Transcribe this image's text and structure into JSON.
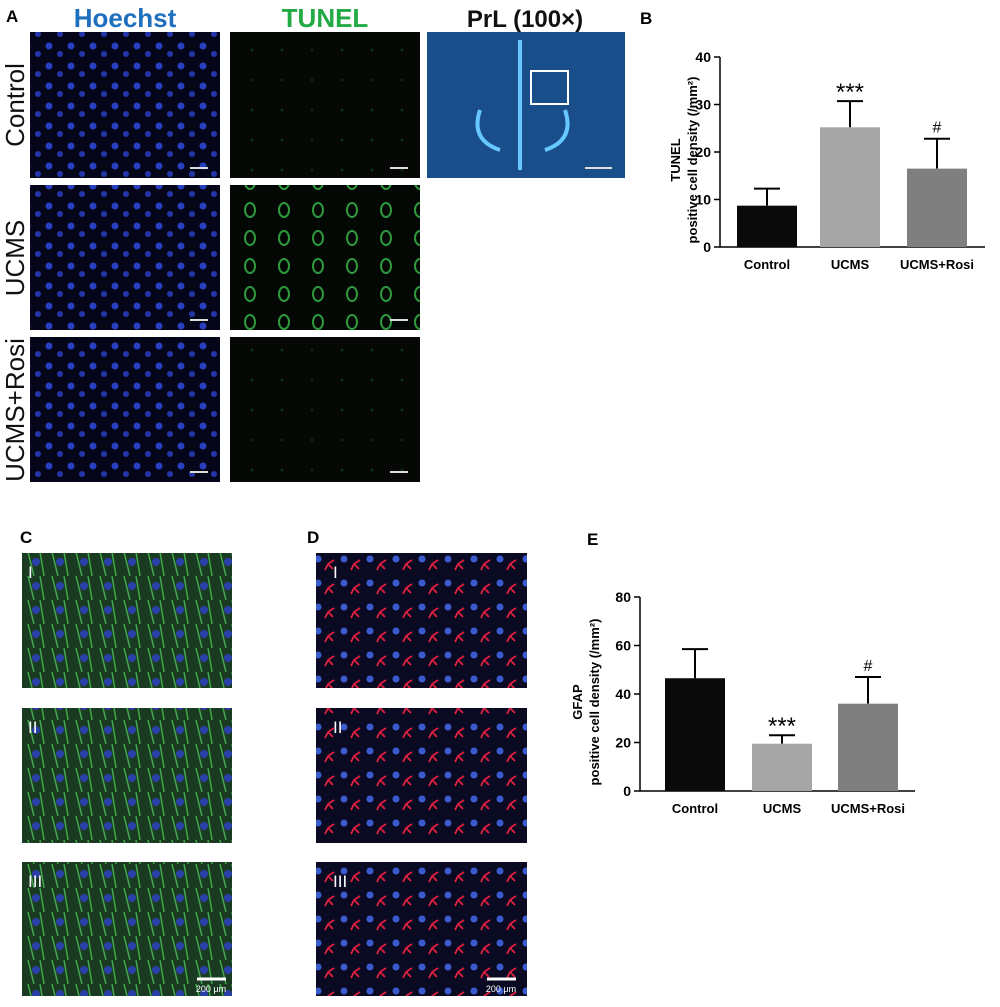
{
  "figure": {
    "panel_labels": [
      "A",
      "B",
      "C",
      "D",
      "E"
    ],
    "column_headers": [
      "Hoechst",
      "TUNEL",
      "PrL (100×)"
    ],
    "row_labels": [
      "Control",
      "UCMS",
      "UCMS+Rosi"
    ],
    "subpanel_labels": [
      "I",
      "II",
      "III"
    ],
    "scale_bar_label": "200 μm"
  },
  "chart_data": [
    {
      "type": "bar",
      "ylabel": [
        "TUNEL",
        "positive cell density (/mm²)"
      ],
      "categories": [
        "Control",
        "UCMS",
        "UCMS+Rosi"
      ],
      "values": [
        8.7,
        25.2,
        16.5
      ],
      "errors": [
        3.6,
        5.5,
        6.3
      ],
      "significance": [
        null,
        "***",
        "#"
      ],
      "colors": [
        "#0a0a0a",
        "#a6a6a6",
        "#7f7f7f"
      ],
      "ylim": [
        0,
        40
      ],
      "yticks": [
        0,
        10,
        20,
        30,
        40
      ]
    },
    {
      "type": "bar",
      "ylabel": [
        "GFAP",
        "positive cell density (/mm²)"
      ],
      "categories": [
        "Control",
        "UCMS",
        "UCMS+Rosi"
      ],
      "values": [
        46.5,
        19.5,
        36
      ],
      "errors": [
        12,
        3.5,
        11
      ],
      "significance": [
        null,
        "***",
        "#"
      ],
      "colors": [
        "#0a0a0a",
        "#a6a6a6",
        "#7f7f7f"
      ],
      "ylim": [
        0,
        80
      ],
      "yticks": [
        0,
        20,
        40,
        60,
        80
      ]
    }
  ]
}
